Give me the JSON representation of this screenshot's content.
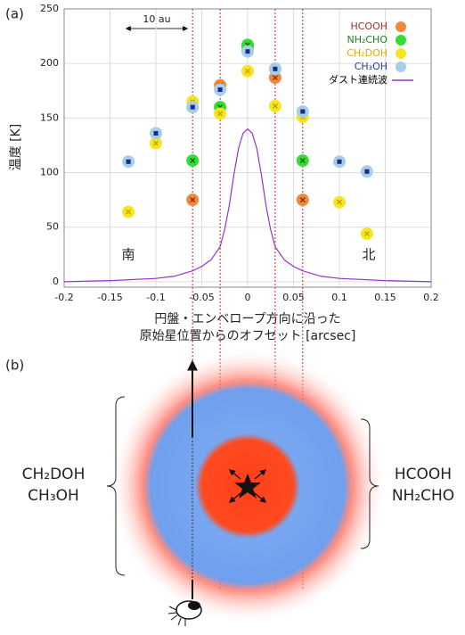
{
  "chart_data": {
    "type": "scatter",
    "panel_label": "(a)",
    "ylabel": "温度 [K]",
    "xlabel": [
      "円盤・エンベロープ方向に沿った",
      "原始星位置からのオフセット [arcsec]"
    ],
    "xlim": [
      -0.2,
      0.2
    ],
    "ylim": [
      -5,
      250
    ],
    "xticks": [
      -0.2,
      -0.15,
      -0.1,
      -0.05,
      0,
      0.05,
      0.1,
      0.15,
      0.2
    ],
    "yticks": [
      0,
      50,
      100,
      150,
      200,
      250
    ],
    "grid": true,
    "legend": "upper right",
    "vlines": [
      -0.06,
      -0.03,
      0.03,
      0.06
    ],
    "vline_color": "#e02020",
    "annotations": [
      "10 au",
      "南",
      "北"
    ],
    "series": [
      {
        "name": "HCOOH",
        "color": "#f08a3a",
        "marker_color": "#8b2a10",
        "label_color": "#a0302a",
        "x": [
          -0.06,
          -0.03,
          0,
          0.03,
          0.06
        ],
        "values": [
          75,
          180,
          215,
          187,
          75
        ]
      },
      {
        "name": "NH₂CHO",
        "color": "#33dd33",
        "marker_color": "#106010",
        "label_color": "#208020",
        "x": [
          -0.06,
          -0.03,
          0,
          0.03,
          0.06
        ],
        "values": [
          111,
          160,
          217,
          195,
          111
        ]
      },
      {
        "name": "CH₂DOH",
        "color": "#f5e620",
        "marker_color": "#c0a000",
        "label_color": "#e0a800",
        "x": [
          -0.13,
          -0.1,
          -0.06,
          -0.03,
          0,
          0.03,
          0.06,
          0.1,
          0.13
        ],
        "values": [
          64,
          127,
          165,
          154,
          193,
          161,
          151,
          73,
          44
        ]
      },
      {
        "name": "CH₃OH",
        "color": "#a8cde8",
        "marker_color": "#1a2a8a",
        "label_color": "#2a3aa0",
        "x": [
          -0.13,
          -0.1,
          -0.06,
          -0.03,
          0,
          0.03,
          0.06,
          0.1,
          0.13
        ],
        "values": [
          110,
          136,
          160,
          176,
          211,
          195,
          156,
          110,
          101
        ]
      },
      {
        "name": "ダスト連続波",
        "type": "line",
        "color": "#9933cc",
        "label_color": "#000000",
        "x": [
          -0.2,
          -0.15,
          -0.1,
          -0.08,
          -0.06,
          -0.05,
          -0.04,
          -0.03,
          -0.025,
          -0.02,
          -0.015,
          -0.01,
          -0.005,
          0,
          0.005,
          0.01,
          0.015,
          0.02,
          0.025,
          0.03,
          0.04,
          0.05,
          0.06,
          0.08,
          0.1,
          0.15,
          0.2
        ],
        "values": [
          0,
          1,
          3,
          5,
          10,
          14,
          20,
          32,
          48,
          70,
          98,
          122,
          136,
          140,
          136,
          122,
          98,
          70,
          48,
          32,
          20,
          14,
          10,
          5,
          3,
          1,
          0
        ]
      }
    ]
  },
  "diagram": {
    "label": "(b)",
    "left_molecules": [
      "CH₂DOH",
      "CH₃OH"
    ],
    "right_molecules": [
      "HCOOH",
      "NH₂CHO"
    ]
  }
}
